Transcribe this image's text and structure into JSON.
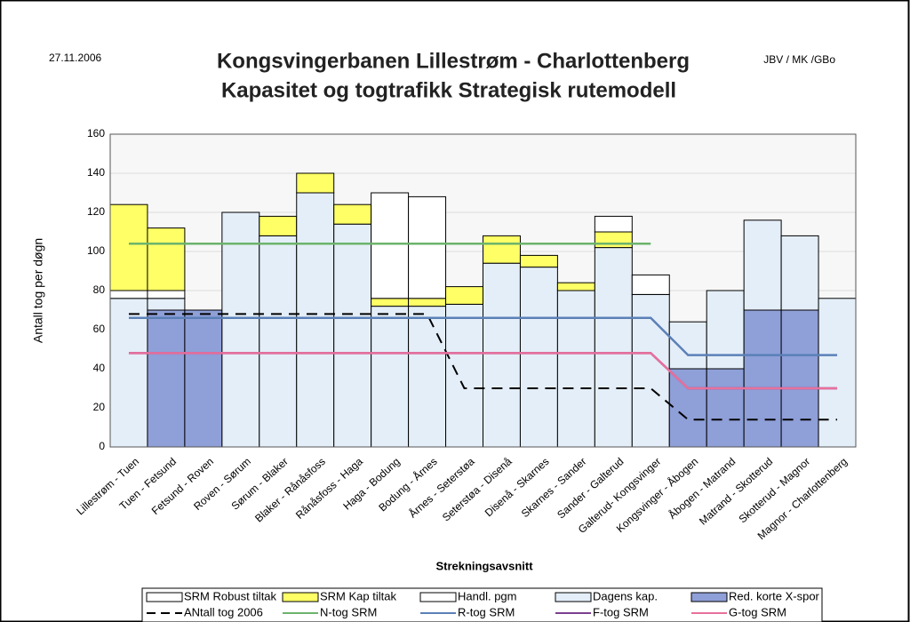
{
  "header": {
    "date": "27.11.2006",
    "author": "JBV / MK /GBo"
  },
  "chart_data": {
    "type": "bar",
    "stacked": true,
    "title": "Kongsvingerbanen Lillestrøm - Charlottenberg",
    "subtitle": "Kapasitet og togtrafikk Strategisk rutemodell",
    "ylabel": "Antall tog per døgn",
    "xlabel": "Strekningsavsnitt",
    "ylim": [
      0,
      160
    ],
    "yticks": [
      0,
      20,
      40,
      60,
      80,
      100,
      120,
      140,
      160
    ],
    "grid": true,
    "categories": [
      "Lillestrøm - Tuen",
      "Tuen - Fetsund",
      "Fetsund - Roven",
      "Roven - Sørum",
      "Sørum - Blaker",
      "Blaker - Rånåsfoss",
      "Rånåsfoss - Haga",
      "Haga - Bodung",
      "Bodung - Årnes",
      "Årnes - Seterstøa",
      "Seterstøa - Disenå",
      "Disenå - Skarnes",
      "Skarnes - Sander",
      "Sander - Galterud",
      "Galterud- Kongsvinger",
      "Kongsvinger - Åbogen",
      "Åbogen - Matrand",
      "Matrand - Skotterud",
      "Skotterud - Magnor",
      "Magnor - Charlottenberg"
    ],
    "stack_order": [
      4,
      3,
      0,
      1,
      2
    ],
    "series": [
      {
        "name": "SRM Robust tiltak",
        "type": "bar",
        "color": "#ffffff",
        "values": [
          4,
          4,
          null,
          null,
          null,
          null,
          null,
          null,
          null,
          null,
          null,
          null,
          null,
          null,
          10,
          null,
          null,
          null,
          null,
          null
        ]
      },
      {
        "name": "SRM Kap tiltak",
        "type": "bar",
        "color": "#ffff66",
        "values": [
          44,
          32,
          null,
          null,
          10,
          10,
          10,
          4,
          4,
          9,
          14,
          6,
          4,
          8,
          null,
          null,
          null,
          null,
          null,
          null
        ]
      },
      {
        "name": "Handl. pgm",
        "type": "bar",
        "color": "#ffffff",
        "values": [
          null,
          null,
          null,
          null,
          null,
          null,
          null,
          54,
          52,
          null,
          null,
          null,
          null,
          8,
          null,
          null,
          null,
          null,
          null,
          null
        ]
      },
      {
        "name": "Dagens kap.",
        "type": "bar",
        "color": "#e4eef8",
        "values": [
          76,
          6,
          null,
          120,
          108,
          130,
          114,
          72,
          72,
          73,
          94,
          92,
          80,
          102,
          78,
          24,
          40,
          46,
          38,
          76
        ]
      },
      {
        "name": "Red. korte X-spor",
        "type": "bar",
        "color": "#8f9fd8",
        "values": [
          null,
          70,
          70,
          null,
          null,
          null,
          null,
          null,
          null,
          null,
          null,
          null,
          null,
          null,
          null,
          40,
          40,
          70,
          70,
          null
        ]
      },
      {
        "name": "ANtall tog 2006",
        "type": "line",
        "dashed": true,
        "color": "#000000",
        "values": [
          68,
          68,
          68,
          68,
          68,
          68,
          68,
          68,
          68,
          30,
          30,
          30,
          30,
          30,
          30,
          14,
          14,
          14,
          14,
          14
        ]
      },
      {
        "name": "N-tog SRM",
        "type": "line",
        "color": "#6cb46c",
        "values": [
          104,
          104,
          104,
          104,
          104,
          104,
          104,
          104,
          104,
          104,
          104,
          104,
          104,
          104,
          104,
          null,
          null,
          null,
          null,
          null
        ]
      },
      {
        "name": "R-tog SRM",
        "type": "line",
        "color": "#5b80b8",
        "values": [
          66,
          66,
          66,
          66,
          66,
          66,
          66,
          66,
          66,
          66,
          66,
          66,
          66,
          66,
          66,
          47,
          47,
          47,
          47,
          47
        ]
      },
      {
        "name": "F-tog SRM",
        "type": "line",
        "color": "#7b3f8f",
        "values": [
          48,
          48,
          48,
          48,
          48,
          48,
          48,
          48,
          48,
          48,
          48,
          48,
          48,
          48,
          48,
          30,
          30,
          30,
          30,
          30
        ]
      },
      {
        "name": "G-tog SRM",
        "type": "line",
        "color": "#e8709c",
        "values": [
          48,
          48,
          48,
          48,
          48,
          48,
          48,
          48,
          48,
          48,
          48,
          48,
          48,
          48,
          48,
          30,
          30,
          30,
          30,
          30
        ]
      }
    ]
  }
}
